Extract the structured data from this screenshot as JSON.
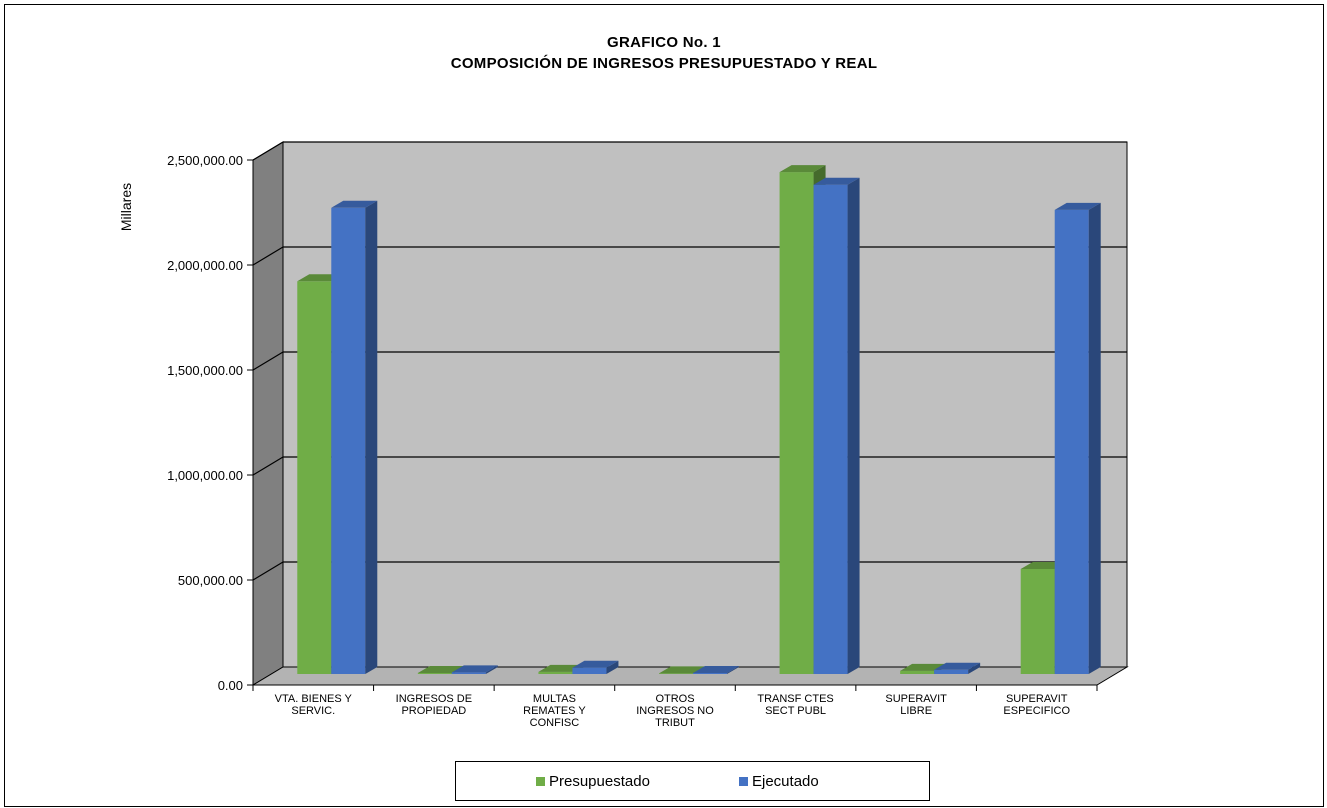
{
  "chart_data": {
    "type": "bar",
    "title_line1": "GRAFICO No. 1",
    "title_line2": "COMPOSICIÓN  DE INGRESOS PRESUPUESTADO  Y REAL",
    "ylabel": "Millares",
    "xlabel": "",
    "ylim": [
      0,
      2500000
    ],
    "yticks": [
      0,
      500000,
      1000000,
      1500000,
      2000000,
      2500000
    ],
    "ytick_labels": [
      "0.00",
      "500,000.00",
      "1,000,000.00",
      "1,500,000.00",
      "2,000,000.00",
      "2,500,000.00"
    ],
    "categories": [
      [
        "VTA. BIENES Y",
        "SERVIC."
      ],
      [
        "INGRESOS DE",
        "PROPIEDAD"
      ],
      [
        "MULTAS",
        "REMATES Y",
        "CONFISC"
      ],
      [
        "OTROS",
        "INGRESOS NO",
        "TRIBUT"
      ],
      [
        "TRANSF CTES",
        "SECT PUBL"
      ],
      [
        "SUPERAVIT",
        "LIBRE"
      ],
      [
        "SUPERAVIT",
        "ESPECIFICO"
      ]
    ],
    "series": [
      {
        "name": "Presupuestado",
        "color": "#70AD47",
        "values": [
          1870000,
          5000,
          10000,
          3000,
          2390000,
          15000,
          500000
        ]
      },
      {
        "name": "Ejecutado",
        "color": "#4472C4",
        "values": [
          2220000,
          8000,
          30000,
          5000,
          2330000,
          20000,
          2210000
        ]
      }
    ],
    "grid": true,
    "legend_position": "bottom",
    "colors": {
      "back_wall": "#C0C0C0",
      "side_wall": "#808080",
      "floor": "#B3B3B3",
      "gridline": "#000000"
    }
  }
}
